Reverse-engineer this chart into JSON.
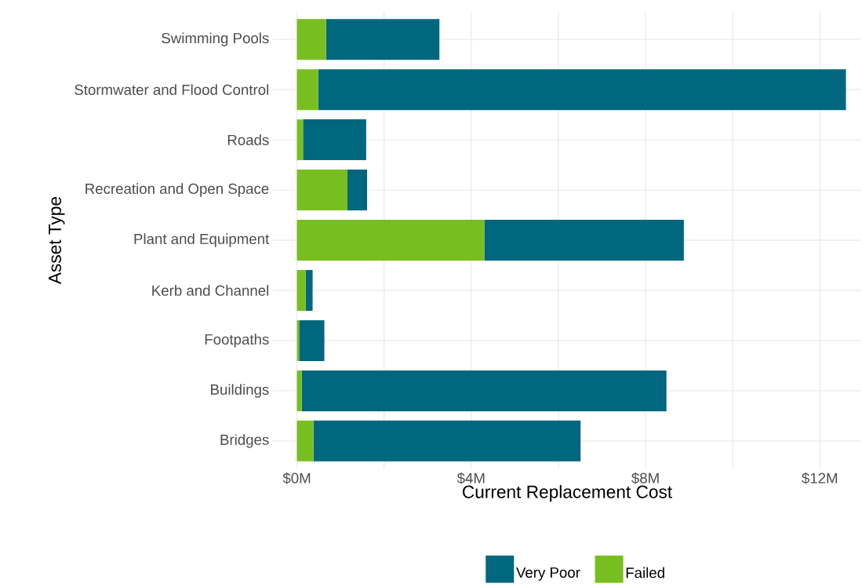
{
  "chart_data": {
    "type": "bar",
    "orientation": "horizontal",
    "stacked": true,
    "xlabel": "Current Replacement Cost",
    "ylabel": "Asset Type",
    "categories": [
      "Swimming Pools",
      "Stormwater and Flood Control",
      "Roads",
      "Recreation and Open Space",
      "Plant and Equipment",
      "Kerb and Channel",
      "Footpaths",
      "Buildings",
      "Bridges"
    ],
    "series": [
      {
        "name": "Failed",
        "color": "#78be20",
        "values": [
          0.67,
          0.49,
          0.14,
          1.16,
          4.3,
          0.2,
          0.05,
          0.11,
          0.38
        ]
      },
      {
        "name": "Very Poor",
        "color": "#00677f",
        "values": [
          2.6,
          12.11,
          1.45,
          0.45,
          4.58,
          0.16,
          0.58,
          8.37,
          6.13
        ]
      }
    ],
    "xlim": [
      -0.55,
      12.95
    ],
    "xticks": [
      {
        "value": 0,
        "label": "$0M"
      },
      {
        "value": 2,
        "label": null
      },
      {
        "value": 4,
        "label": "$4M"
      },
      {
        "value": 6,
        "label": null
      },
      {
        "value": 8,
        "label": "$8M"
      },
      {
        "value": 10,
        "label": null
      },
      {
        "value": 12,
        "label": "$12M"
      }
    ],
    "grid": true,
    "legend": "bottom"
  }
}
